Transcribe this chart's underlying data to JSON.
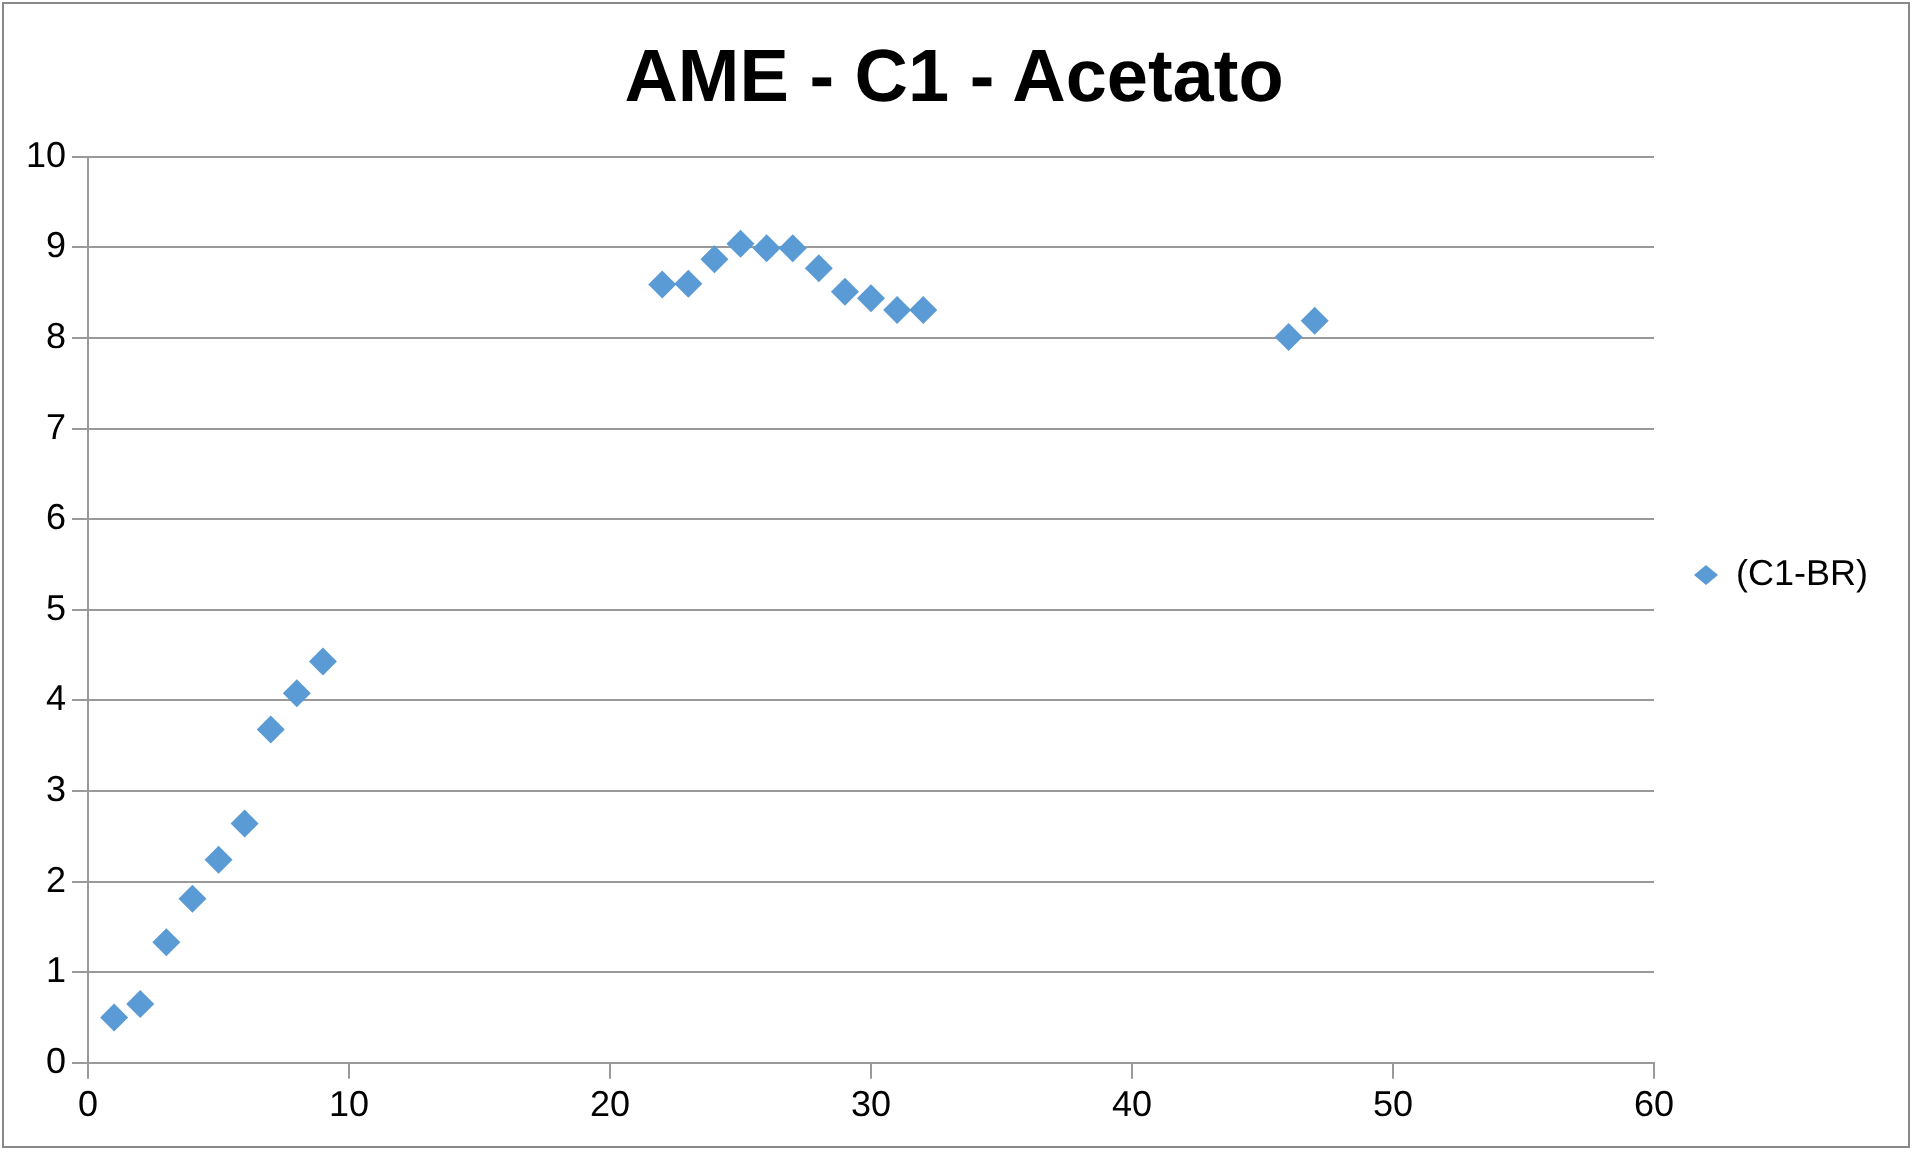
{
  "chart_data": {
    "type": "scatter",
    "title": "AME - C1 - Acetato",
    "xlim": [
      0,
      60
    ],
    "xticks": [
      0,
      10,
      20,
      30,
      40,
      50,
      60
    ],
    "ylim": [
      0,
      10
    ],
    "yticks": [
      0,
      1,
      2,
      3,
      4,
      5,
      6,
      7,
      8,
      9,
      10
    ],
    "grid": "y",
    "legend": "right",
    "marker": "diamond",
    "series": [
      {
        "name": "(C1-BR)",
        "color": "#5b9bd5",
        "x": [
          1,
          2,
          3,
          4,
          5,
          6,
          7,
          8,
          9,
          22,
          23,
          24,
          25,
          26,
          27,
          28,
          29,
          30,
          31,
          32,
          46,
          47
        ],
        "values": [
          0.5,
          0.65,
          1.33,
          1.81,
          2.24,
          2.64,
          3.68,
          4.08,
          4.43,
          8.59,
          8.6,
          8.87,
          9.04,
          8.99,
          8.99,
          8.77,
          8.51,
          8.44,
          8.31,
          8.31,
          8.01,
          8.19
        ]
      }
    ]
  }
}
